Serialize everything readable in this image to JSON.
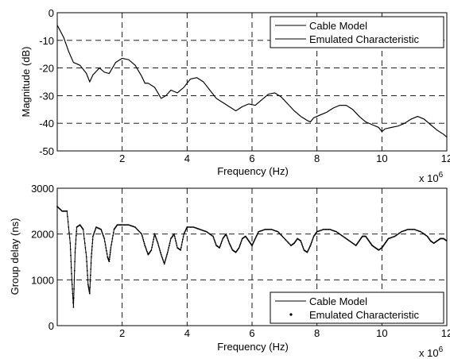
{
  "chart_data": [
    {
      "type": "line",
      "xlabel": "Frequency (Hz)",
      "ylabel": "Magnitude (dB)",
      "x_multiplier": "x 10",
      "x_multiplier_exp": "6",
      "xlim": [
        0,
        12
      ],
      "ylim": [
        -50,
        0
      ],
      "xticks": [
        "2",
        "4",
        "6",
        "8",
        "10",
        "12"
      ],
      "yticks": [
        "0",
        "-10",
        "-20",
        "-30",
        "-40",
        "-50"
      ],
      "grid": true,
      "legend_placement": "top-right",
      "series": [
        {
          "name": "Cable Model",
          "style": "solid",
          "x": [
            0,
            0.2,
            0.35,
            0.5,
            0.7,
            0.9,
            1.0,
            1.1,
            1.3,
            1.45,
            1.6,
            1.8,
            2.0,
            2.2,
            2.4,
            2.6,
            2.7,
            2.8,
            3.0,
            3.1,
            3.2,
            3.35,
            3.5,
            3.7,
            3.9,
            4.1,
            4.3,
            4.5,
            4.7,
            4.9,
            5.1,
            5.3,
            5.5,
            5.7,
            5.9,
            6.1,
            6.3,
            6.5,
            6.7,
            6.9,
            7.1,
            7.3,
            7.5,
            7.7,
            7.8,
            7.9,
            8.1,
            8.3,
            8.5,
            8.7,
            8.9,
            9.1,
            9.3,
            9.5,
            9.7,
            9.9,
            10.0,
            10.1,
            10.3,
            10.5,
            10.7,
            10.9,
            11.1,
            11.3,
            11.5,
            11.7,
            11.9,
            12.0
          ],
          "y": [
            -4.5,
            -9,
            -14,
            -18,
            -19,
            -22,
            -25,
            -22.5,
            -20,
            -21.5,
            -22,
            -18,
            -16.5,
            -17,
            -19,
            -23,
            -25.5,
            -25.5,
            -27,
            -29,
            -31,
            -30,
            -28,
            -29,
            -27,
            -24,
            -23.5,
            -25,
            -28,
            -31,
            -32.5,
            -34,
            -35.5,
            -34,
            -33,
            -33.5,
            -31.5,
            -29.5,
            -29,
            -30.5,
            -33,
            -35.5,
            -37.5,
            -39,
            -39.5,
            -38,
            -37,
            -36,
            -34.5,
            -33.5,
            -33.5,
            -35,
            -37.5,
            -39.5,
            -40.5,
            -41.5,
            -43,
            -42,
            -41.5,
            -41,
            -40,
            -38.5,
            -37.5,
            -38.5,
            -40.5,
            -42.5,
            -44,
            -45
          ]
        },
        {
          "name": "Emulated Characteristic",
          "style": "solid",
          "x": [
            0,
            0.2,
            0.35,
            0.5,
            0.7,
            0.9,
            1.0,
            1.1,
            1.3,
            1.45,
            1.6,
            1.8,
            2.0,
            2.2,
            2.4,
            2.6,
            2.7,
            2.8,
            3.0,
            3.1,
            3.2,
            3.35,
            3.5,
            3.7,
            3.9,
            4.1,
            4.3,
            4.5,
            4.7,
            4.9,
            5.1,
            5.3,
            5.5,
            5.7,
            5.9,
            6.1,
            6.3,
            6.5,
            6.7,
            6.9,
            7.1,
            7.3,
            7.5,
            7.7,
            7.8,
            7.9,
            8.1,
            8.3,
            8.5,
            8.7,
            8.9,
            9.1,
            9.3,
            9.5,
            9.7,
            9.9,
            10.0,
            10.1,
            10.3,
            10.5,
            10.7,
            10.9,
            11.1,
            11.3,
            11.5,
            11.7,
            11.9,
            12.0
          ],
          "y": [
            -4.5,
            -9,
            -14,
            -18,
            -19,
            -22,
            -25,
            -22.5,
            -20,
            -21.5,
            -22,
            -18,
            -16.5,
            -17,
            -19,
            -23,
            -25.5,
            -25.5,
            -27,
            -29,
            -31,
            -30,
            -28,
            -29,
            -27,
            -24,
            -23.5,
            -25,
            -28,
            -31,
            -32.5,
            -34,
            -35.5,
            -34,
            -33,
            -33.5,
            -31.5,
            -29.5,
            -29,
            -30.5,
            -33,
            -35.5,
            -37.5,
            -39,
            -39.5,
            -38,
            -37,
            -36,
            -34.5,
            -33.5,
            -33.5,
            -35,
            -37.5,
            -39.5,
            -40.5,
            -41.5,
            -43,
            -42,
            -41.5,
            -41,
            -40,
            -38.5,
            -37.5,
            -38.5,
            -40.5,
            -42.5,
            -44,
            -45
          ]
        }
      ]
    },
    {
      "type": "line",
      "xlabel": "Frequency (Hz)",
      "ylabel": "Group delay (ns)",
      "x_multiplier": "x 10",
      "x_multiplier_exp": "6",
      "xlim": [
        0,
        12
      ],
      "ylim": [
        0,
        3000
      ],
      "xticks": [
        "2",
        "4",
        "6",
        "8",
        "10",
        "12"
      ],
      "yticks": [
        "3000",
        "2000",
        "1000",
        "0"
      ],
      "grid": true,
      "legend_placement": "bottom-right",
      "series": [
        {
          "name": "Cable Model",
          "style": "solid",
          "x": [
            0,
            0.15,
            0.3,
            0.4,
            0.45,
            0.5,
            0.55,
            0.6,
            0.7,
            0.8,
            0.9,
            0.95,
            1.0,
            1.05,
            1.1,
            1.2,
            1.35,
            1.45,
            1.55,
            1.6,
            1.65,
            1.75,
            1.85,
            2.0,
            2.2,
            2.4,
            2.6,
            2.7,
            2.8,
            2.9,
            3.0,
            3.1,
            3.2,
            3.3,
            3.4,
            3.5,
            3.6,
            3.7,
            3.8,
            3.9,
            4.0,
            4.2,
            4.4,
            4.6,
            4.8,
            4.9,
            5.0,
            5.1,
            5.2,
            5.3,
            5.4,
            5.5,
            5.6,
            5.7,
            5.8,
            5.9,
            6.0,
            6.1,
            6.2,
            6.4,
            6.6,
            6.8,
            7.0,
            7.2,
            7.3,
            7.4,
            7.5,
            7.6,
            7.7,
            7.8,
            7.9,
            8.0,
            8.2,
            8.4,
            8.6,
            8.8,
            9.0,
            9.2,
            9.3,
            9.4,
            9.5,
            9.6,
            9.7,
            9.8,
            9.9,
            10.0,
            10.1,
            10.2,
            10.4,
            10.6,
            10.8,
            11.0,
            11.2,
            11.4,
            11.5,
            11.6,
            11.7,
            11.8,
            11.9,
            12.0
          ],
          "y": [
            2600,
            2500,
            2500,
            1800,
            1000,
            400,
            1600,
            2150,
            2200,
            2100,
            1500,
            900,
            700,
            1500,
            1950,
            2150,
            2100,
            1900,
            1500,
            1400,
            1700,
            2100,
            2200,
            2200,
            2200,
            2150,
            2000,
            1750,
            1550,
            1650,
            2000,
            1800,
            1550,
            1350,
            1600,
            1900,
            2000,
            1700,
            1650,
            2000,
            2150,
            2150,
            2100,
            2050,
            1950,
            1750,
            1700,
            1900,
            2000,
            1800,
            1650,
            1600,
            1700,
            1900,
            1950,
            1850,
            1750,
            1900,
            2050,
            2100,
            2100,
            2050,
            1900,
            1750,
            1800,
            1900,
            1850,
            1650,
            1600,
            1750,
            1950,
            2050,
            2100,
            2100,
            2050,
            1950,
            1850,
            1750,
            1850,
            1950,
            1950,
            1850,
            1750,
            1700,
            1650,
            1700,
            1800,
            1900,
            1950,
            2050,
            2100,
            2100,
            2050,
            1950,
            1850,
            1800,
            1850,
            1900,
            1900,
            1850
          ]
        },
        {
          "name": "Emulated Characteristic",
          "style": "dots",
          "x": [
            0,
            0.15,
            0.3,
            0.4,
            0.45,
            0.5,
            0.55,
            0.6,
            0.7,
            0.8,
            0.9,
            0.95,
            1.0,
            1.05,
            1.1,
            1.2,
            1.35,
            1.45,
            1.55,
            1.6,
            1.65,
            1.75,
            1.85,
            2.0,
            2.2,
            2.4,
            2.6,
            2.7,
            2.8,
            2.9,
            3.0,
            3.1,
            3.2,
            3.3,
            3.4,
            3.5,
            3.6,
            3.7,
            3.8,
            3.9,
            4.0,
            4.2,
            4.4,
            4.6,
            4.8,
            4.9,
            5.0,
            5.1,
            5.2,
            5.3,
            5.4,
            5.5,
            5.6,
            5.7,
            5.8,
            5.9,
            6.0,
            6.1,
            6.2,
            6.4,
            6.6,
            6.8,
            7.0,
            7.2,
            7.3,
            7.4,
            7.5,
            7.6,
            7.7,
            7.8,
            7.9,
            8.0,
            8.2,
            8.4,
            8.6,
            8.8,
            9.0,
            9.2,
            9.3,
            9.4,
            9.5,
            9.6,
            9.7,
            9.8,
            9.9,
            10.0,
            10.1,
            10.2,
            10.4,
            10.6,
            10.8,
            11.0,
            11.2,
            11.4,
            11.5,
            11.6,
            11.7,
            11.8,
            11.9,
            12.0
          ],
          "y": [
            2600,
            2500,
            2500,
            1800,
            1000,
            400,
            1600,
            2150,
            2200,
            2100,
            1500,
            900,
            700,
            1500,
            1950,
            2150,
            2100,
            1900,
            1500,
            1400,
            1700,
            2100,
            2200,
            2200,
            2200,
            2150,
            2000,
            1750,
            1550,
            1650,
            2000,
            1800,
            1550,
            1350,
            1600,
            1900,
            2000,
            1700,
            1650,
            2000,
            2150,
            2150,
            2100,
            2050,
            1950,
            1750,
            1700,
            1900,
            2000,
            1800,
            1650,
            1600,
            1700,
            1900,
            1950,
            1850,
            1750,
            1900,
            2050,
            2100,
            2100,
            2050,
            1900,
            1750,
            1800,
            1900,
            1850,
            1650,
            1600,
            1750,
            1950,
            2050,
            2100,
            2100,
            2050,
            1950,
            1850,
            1750,
            1850,
            1950,
            1950,
            1850,
            1750,
            1700,
            1650,
            1700,
            1800,
            1900,
            1950,
            2050,
            2100,
            2100,
            2050,
            1950,
            1850,
            1800,
            1850,
            1900,
            1900,
            1850
          ]
        }
      ]
    }
  ]
}
